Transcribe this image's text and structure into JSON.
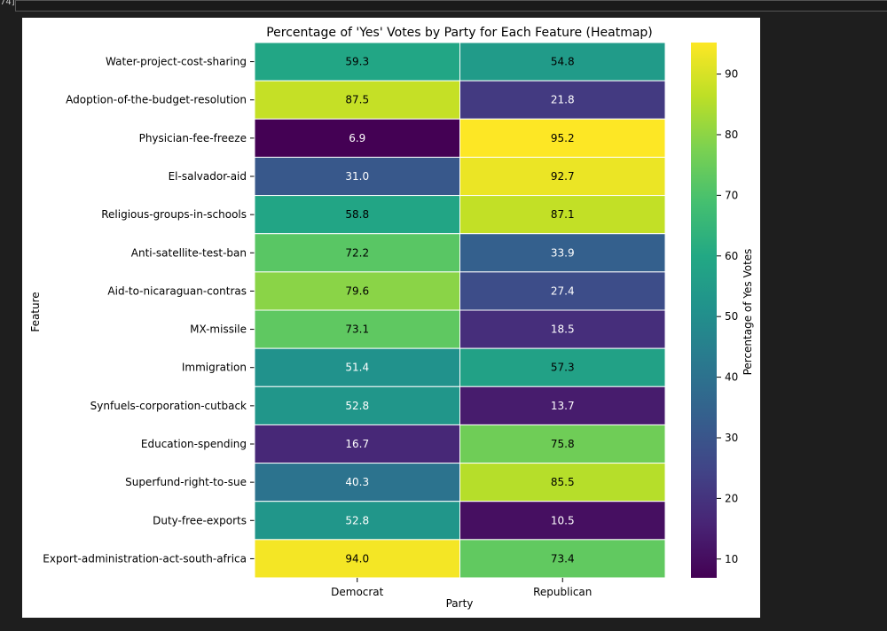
{
  "cell_label": "74]",
  "chart_data": {
    "type": "heatmap",
    "title": "Percentage of 'Yes' Votes by Party for Each Feature (Heatmap)",
    "xlabel": "Party",
    "ylabel": "Feature",
    "colorbar_label": "Percentage of Yes Votes",
    "colormap": "viridis",
    "colorbar_range": [
      6.9,
      95.2
    ],
    "colorbar_ticks": [
      10,
      20,
      30,
      40,
      50,
      60,
      70,
      80,
      90
    ],
    "columns": [
      "Democrat",
      "Republican"
    ],
    "rows": [
      "Water-project-cost-sharing",
      "Adoption-of-the-budget-resolution",
      "Physician-fee-freeze",
      "El-salvador-aid",
      "Religious-groups-in-schools",
      "Anti-satellite-test-ban",
      "Aid-to-nicaraguan-contras",
      "MX-missile",
      "Immigration",
      "Synfuels-corporation-cutback",
      "Education-spending",
      "Superfund-right-to-sue",
      "Duty-free-exports",
      "Export-administration-act-south-africa"
    ],
    "values": [
      [
        59.3,
        54.8
      ],
      [
        87.5,
        21.8
      ],
      [
        6.9,
        95.2
      ],
      [
        31.0,
        92.7
      ],
      [
        58.8,
        87.1
      ],
      [
        72.2,
        33.9
      ],
      [
        79.6,
        27.4
      ],
      [
        73.1,
        18.5
      ],
      [
        51.4,
        57.3
      ],
      [
        52.8,
        13.7
      ],
      [
        16.7,
        75.8
      ],
      [
        40.3,
        85.5
      ],
      [
        52.8,
        10.5
      ],
      [
        94.0,
        73.4
      ]
    ]
  }
}
